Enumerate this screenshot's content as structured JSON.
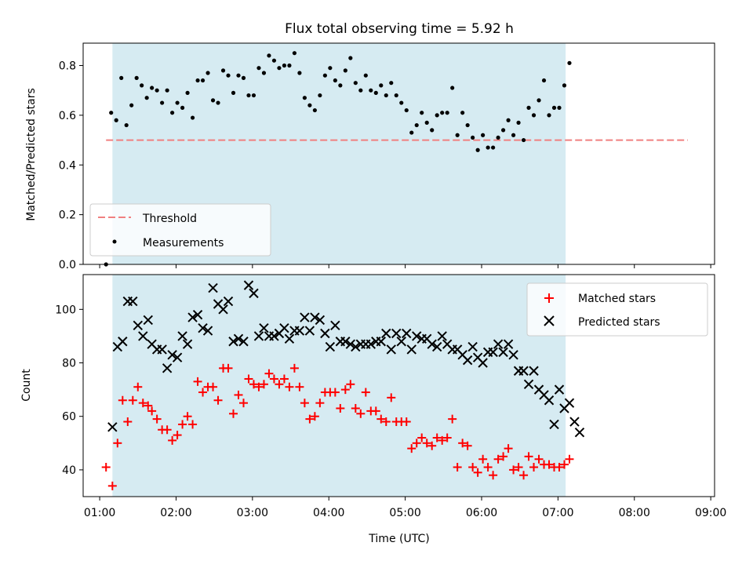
{
  "chart_data": [
    {
      "type": "scatter",
      "title": "Flux total observing time = 5.92 h",
      "xlabel": "",
      "ylabel": "Matched/Predicted stars",
      "ylim": [
        0,
        0.89
      ],
      "yticks": [
        "0.0",
        "0.2",
        "0.4",
        "0.6",
        "0.8"
      ],
      "ytick_values": [
        0.0,
        0.2,
        0.4,
        0.6,
        0.8
      ],
      "xlim_minutes": [
        47,
        543
      ],
      "shaded_span_minutes": [
        70,
        426
      ],
      "grid": false,
      "legend_position": "lower-left",
      "threshold": {
        "name": "Threshold",
        "y": 0.5,
        "x_from_minutes": 65,
        "x_to_minutes": 522,
        "color": "#f08080"
      },
      "series": [
        {
          "name": "Measurements",
          "color": "#000000",
          "marker": "dot",
          "x_minutes": [
            65,
            69,
            73,
            77,
            81,
            85,
            89,
            93,
            97,
            101,
            105,
            109,
            113,
            117,
            121,
            125,
            129,
            133,
            137,
            141,
            145,
            149,
            153,
            157,
            161,
            165,
            169,
            173,
            177,
            181,
            185,
            189,
            193,
            197,
            201,
            205,
            209,
            213,
            217,
            221,
            225,
            229,
            233,
            237,
            241,
            245,
            249,
            253,
            257,
            261,
            265,
            269,
            273,
            277,
            281,
            285,
            289,
            293,
            297,
            301,
            305,
            309,
            313,
            317,
            321,
            325,
            329,
            333,
            337,
            341,
            345,
            349,
            353,
            357,
            361,
            365,
            369,
            373,
            377,
            381,
            385,
            389,
            393,
            397,
            401,
            405,
            409,
            413,
            417,
            421,
            425,
            429,
            433,
            437,
            441,
            445,
            449,
            453,
            457,
            461,
            465,
            469,
            473,
            477,
            481,
            485,
            489,
            493,
            497,
            501,
            505,
            509,
            513,
            517,
            521
          ],
          "y": [
            0.0,
            0.61,
            0.58,
            0.75,
            0.56,
            0.64,
            0.75,
            0.72,
            0.67,
            0.71,
            0.7,
            0.65,
            0.7,
            0.61,
            0.65,
            0.63,
            0.69,
            0.59,
            0.74,
            0.74,
            0.77,
            0.66,
            0.65,
            0.78,
            0.76,
            0.69,
            0.76,
            0.75,
            0.68,
            0.68,
            0.79,
            0.77,
            0.84,
            0.82,
            0.79,
            0.8,
            0.8,
            0.85,
            0.77,
            0.67,
            0.64,
            0.62,
            0.68,
            0.76,
            0.79,
            0.74,
            0.72,
            0.78,
            0.83,
            0.73,
            0.7,
            0.76,
            0.7,
            0.69,
            0.72,
            0.68,
            0.73,
            0.68,
            0.65,
            0.62,
            0.53,
            0.56,
            0.61,
            0.57,
            0.54,
            0.6,
            0.61,
            0.61,
            0.71,
            0.52,
            0.61,
            0.56,
            0.51,
            0.46,
            0.52,
            0.47,
            0.47,
            0.51,
            0.54,
            0.58,
            0.52,
            0.57,
            0.5,
            0.63,
            0.6,
            0.66,
            0.74,
            0.6,
            0.63,
            0.63,
            0.72,
            0.81,
            null,
            null,
            null,
            null,
            null,
            null,
            null,
            null,
            null,
            null,
            null,
            null,
            null,
            null,
            null,
            null,
            null,
            null,
            null,
            null,
            null,
            null,
            null
          ]
        }
      ]
    },
    {
      "type": "scatter",
      "title": "",
      "xlabel": "Time (UTC)",
      "ylabel": "Count",
      "ylim": [
        30,
        113
      ],
      "yticks": [
        "40",
        "60",
        "80",
        "100"
      ],
      "ytick_values": [
        40,
        60,
        80,
        100
      ],
      "xticks": [
        "01:00",
        "02:00",
        "03:00",
        "04:00",
        "05:00",
        "06:00",
        "07:00",
        "08:00",
        "09:00"
      ],
      "xtick_minutes": [
        60,
        120,
        180,
        240,
        300,
        360,
        420,
        480,
        540
      ],
      "xlim_minutes": [
        47,
        543
      ],
      "shaded_span_minutes": [
        70,
        426
      ],
      "grid": false,
      "legend_position": "top-right",
      "series": [
        {
          "name": "Matched stars",
          "color": "#ff0000",
          "marker": "plus",
          "x_minutes": [
            65,
            70,
            74,
            78,
            82,
            86,
            90,
            94,
            98,
            101,
            105,
            109,
            113,
            117,
            121,
            125,
            129,
            133,
            137,
            141,
            145,
            149,
            153,
            157,
            161,
            165,
            169,
            173,
            177,
            181,
            185,
            189,
            193,
            197,
            201,
            205,
            209,
            213,
            217,
            221,
            225,
            229,
            233,
            237,
            241,
            245,
            249,
            253,
            257,
            261,
            265,
            269,
            273,
            277,
            281,
            285,
            289,
            293,
            297,
            301,
            305,
            309,
            313,
            317,
            321,
            325,
            329,
            333,
            337,
            341,
            345,
            349,
            353,
            357,
            361,
            365,
            369,
            373,
            377,
            381,
            385,
            389,
            393,
            397,
            401,
            405,
            409,
            413,
            417,
            421,
            425,
            429,
            433,
            437,
            441,
            445,
            449,
            453,
            457,
            461,
            465,
            469,
            473,
            477,
            481,
            485,
            489,
            493,
            497,
            501,
            505,
            509,
            513,
            517,
            521
          ],
          "y": [
            41,
            34,
            50,
            66,
            58,
            66,
            71,
            65,
            64,
            62,
            59,
            55,
            55,
            51,
            53,
            57,
            60,
            57,
            73,
            69,
            71,
            71,
            66,
            78,
            78,
            61,
            68,
            65,
            74,
            72,
            71,
            72,
            76,
            74,
            72,
            74,
            71,
            78,
            71,
            65,
            59,
            60,
            65,
            69,
            69,
            69,
            63,
            70,
            72,
            63,
            61,
            69,
            62,
            62,
            59,
            58,
            67,
            58,
            58,
            58,
            48,
            50,
            52,
            50,
            49,
            52,
            51,
            52,
            59,
            41,
            50,
            49,
            41,
            39,
            44,
            41,
            38,
            44,
            45,
            48,
            40,
            41,
            38,
            45,
            41,
            44,
            42,
            42,
            41,
            41,
            42,
            44,
            null,
            null,
            null,
            null,
            null,
            null,
            null,
            null,
            null,
            null,
            null,
            null,
            null,
            null,
            null,
            null,
            null,
            null,
            null,
            null,
            null,
            null,
            null
          ]
        },
        {
          "name": "Predicted stars",
          "color": "#000000",
          "marker": "x",
          "x_minutes": [
            70,
            74,
            78,
            82,
            86,
            90,
            94,
            98,
            101,
            105,
            109,
            113,
            117,
            121,
            125,
            129,
            133,
            137,
            141,
            145,
            149,
            153,
            157,
            161,
            165,
            169,
            173,
            177,
            181,
            185,
            189,
            193,
            197,
            201,
            205,
            209,
            213,
            217,
            221,
            225,
            229,
            233,
            237,
            241,
            245,
            249,
            253,
            257,
            261,
            265,
            269,
            273,
            277,
            281,
            285,
            289,
            293,
            297,
            301,
            305,
            309,
            313,
            317,
            321,
            325,
            329,
            333,
            337,
            341,
            345,
            349,
            353,
            357,
            361,
            365,
            369,
            373,
            377,
            381,
            385,
            389,
            393,
            397,
            401,
            405,
            409,
            413,
            417,
            421,
            425,
            429,
            433,
            437,
            441,
            445,
            449,
            453,
            457,
            461,
            465,
            469,
            473,
            477,
            481,
            485,
            489,
            493,
            497,
            501,
            505,
            509,
            513,
            517,
            521,
            525
          ],
          "y": [
            56,
            86,
            88,
            103,
            103,
            94,
            90,
            96,
            87,
            85,
            85,
            78,
            83,
            82,
            90,
            87,
            97,
            98,
            93,
            92,
            108,
            102,
            100,
            103,
            88,
            89,
            88,
            109,
            106,
            90,
            93,
            90,
            90,
            91,
            93,
            89,
            92,
            92,
            97,
            92,
            97,
            96,
            91,
            86,
            94,
            88,
            88,
            87,
            86,
            87,
            87,
            87,
            88,
            88,
            91,
            85,
            91,
            88,
            91,
            85,
            90,
            89,
            89,
            87,
            86,
            90,
            87,
            85,
            85,
            83,
            81,
            86,
            82,
            80,
            84,
            84,
            87,
            84,
            87,
            83,
            77,
            77,
            72,
            77,
            70,
            68,
            66,
            57,
            70,
            63,
            65,
            58,
            54,
            null,
            null,
            null,
            null,
            null,
            null,
            null,
            null,
            null,
            null,
            null,
            null,
            null,
            null,
            null,
            null,
            null,
            null,
            null,
            null,
            null,
            null
          ]
        }
      ]
    }
  ]
}
